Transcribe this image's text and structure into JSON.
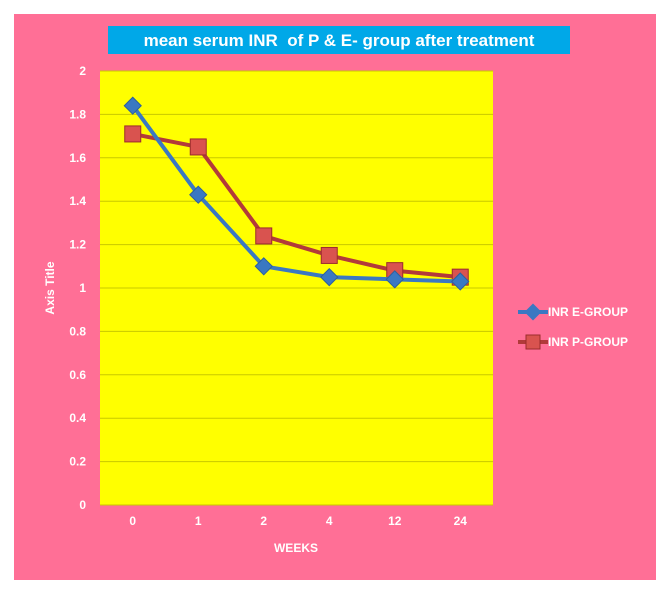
{
  "chart_data": {
    "type": "line",
    "title": "mean serum INR  of P & E- group after treatment",
    "xlabel": "WEEKS",
    "ylabel": "Axis Title",
    "categories": [
      "0",
      "1",
      "2",
      "4",
      "12",
      "24"
    ],
    "ylim": [
      0,
      2
    ],
    "yticks": [
      "0",
      "0.2",
      "0.4",
      "0.6",
      "0.8",
      "1",
      "1.2",
      "1.4",
      "1.6",
      "1.8",
      "2"
    ],
    "grid": true,
    "legend_position": "right",
    "series": [
      {
        "name": "INR E-GROUP",
        "values": [
          1.84,
          1.43,
          1.1,
          1.05,
          1.04,
          1.03
        ],
        "color": "#3a78c2",
        "marker": "diamond"
      },
      {
        "name": "INR P-GROUP",
        "values": [
          1.71,
          1.65,
          1.24,
          1.15,
          1.08,
          1.05
        ],
        "color": "#b23a3a",
        "marker": "square"
      }
    ],
    "colors": {
      "outer_background": "#ff6f96",
      "plot_background": "#ffff00",
      "title_background": "#00a8e8",
      "text": "#ffffff"
    }
  }
}
